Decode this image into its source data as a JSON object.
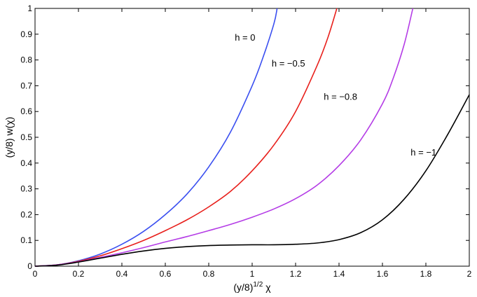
{
  "chart_data": {
    "type": "line",
    "xlim": [
      0,
      2
    ],
    "ylim": [
      0,
      1
    ],
    "x_ticks": [
      0,
      0.2,
      0.4,
      0.6,
      0.8,
      1,
      1.2,
      1.4,
      1.6,
      1.8,
      2
    ],
    "x_tick_labels": [
      "0",
      "0.2",
      "0.4",
      "0.6",
      "0.8",
      "1",
      "1.2",
      "1.4",
      "1.6",
      "1.8",
      "2"
    ],
    "y_ticks": [
      0,
      0.1,
      0.2,
      0.3,
      0.4,
      0.5,
      0.6,
      0.7,
      0.8,
      0.9,
      1
    ],
    "y_tick_labels": [
      "0",
      "0.1",
      "0.2",
      "0.3",
      "0.4",
      "0.5",
      "0.6",
      "0.7",
      "0.8",
      "0.9",
      "1"
    ],
    "xlabel_base": "(y/8)",
    "xlabel_exp": "1/2",
    "xlabel_var": "χ",
    "ylabel": "(y/8) w(χ)",
    "grid": false,
    "series": [
      {
        "name": "h = 0",
        "color": "#3a4ff0",
        "x": [
          0,
          0.1,
          0.2,
          0.3,
          0.4,
          0.5,
          0.6,
          0.7,
          0.8,
          0.9,
          1.0,
          1.05,
          1.1,
          1.115
        ],
        "y": [
          0,
          0.005,
          0.021,
          0.047,
          0.085,
          0.135,
          0.2,
          0.28,
          0.385,
          0.52,
          0.7,
          0.81,
          0.94,
          1.0
        ]
      },
      {
        "name": "h = −0.5",
        "color": "#e8201c",
        "x": [
          0,
          0.1,
          0.2,
          0.3,
          0.4,
          0.5,
          0.6,
          0.7,
          0.8,
          0.9,
          1.0,
          1.1,
          1.2,
          1.3,
          1.35,
          1.39
        ],
        "y": [
          0,
          0.005,
          0.019,
          0.04,
          0.068,
          0.1,
          0.138,
          0.18,
          0.23,
          0.29,
          0.37,
          0.47,
          0.6,
          0.78,
          0.89,
          1.0
        ]
      },
      {
        "name": "h = −0.8",
        "color": "#b43ce6",
        "x": [
          0,
          0.1,
          0.2,
          0.3,
          0.4,
          0.5,
          0.6,
          0.7,
          0.8,
          0.9,
          1.0,
          1.1,
          1.2,
          1.3,
          1.4,
          1.5,
          1.6,
          1.65,
          1.7,
          1.74
        ],
        "y": [
          0,
          0.005,
          0.017,
          0.034,
          0.052,
          0.072,
          0.094,
          0.115,
          0.138,
          0.162,
          0.19,
          0.222,
          0.262,
          0.315,
          0.39,
          0.49,
          0.63,
          0.73,
          0.86,
          1.0
        ]
      },
      {
        "name": "h = −1",
        "color": "#000000",
        "x": [
          0,
          0.1,
          0.2,
          0.3,
          0.4,
          0.5,
          0.6,
          0.7,
          0.8,
          0.9,
          1.0,
          1.1,
          1.2,
          1.3,
          1.4,
          1.5,
          1.6,
          1.7,
          1.8,
          1.9,
          2.0
        ],
        "y": [
          0,
          0.004,
          0.016,
          0.031,
          0.046,
          0.059,
          0.069,
          0.076,
          0.08,
          0.082,
          0.083,
          0.083,
          0.085,
          0.09,
          0.103,
          0.13,
          0.18,
          0.26,
          0.37,
          0.51,
          0.665
        ]
      }
    ],
    "annotations": [
      {
        "text": "h = 0",
        "x": 0.92,
        "y": 0.875
      },
      {
        "text": "h = −0.5",
        "x": 1.09,
        "y": 0.775
      },
      {
        "text": "h = −0.8",
        "x": 1.33,
        "y": 0.645
      },
      {
        "text": "h = −1",
        "x": 1.73,
        "y": 0.43
      }
    ]
  }
}
